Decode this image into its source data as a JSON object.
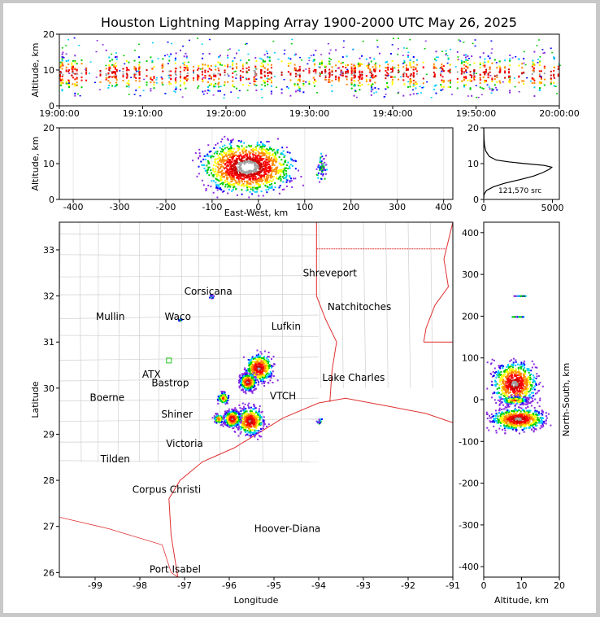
{
  "title": "Houston Lightning Mapping Array 1900-2000 UTC May 26, 2025",
  "chart_data": [
    {
      "id": "altitude-vs-time",
      "type": "heatmap",
      "ylabel": "Altitude, km",
      "xlim": [
        "19:00:00",
        "20:00:00"
      ],
      "ylim": [
        0,
        20
      ],
      "x_ticks": [
        "19:00:00",
        "19:10:00",
        "19:20:00",
        "19:30:00",
        "19:40:00",
        "19:50:00",
        "20:00:00"
      ],
      "y_ticks": [
        0,
        10,
        20
      ],
      "band": {
        "altitude_center_km": 9,
        "altitude_extent_km": [
          2,
          16
        ]
      }
    },
    {
      "id": "altitude-vs-east-west",
      "type": "heatmap",
      "xlabel": "East-West, km",
      "ylabel": "Altitude, km",
      "xlim": [
        -430,
        420
      ],
      "ylim": [
        0,
        20
      ],
      "x_ticks": [
        -400,
        -300,
        -200,
        -100,
        0,
        100,
        200,
        300,
        400
      ],
      "y_ticks": [
        0,
        10,
        20
      ],
      "clusters": [
        {
          "x_km": -25,
          "alt_km": 9,
          "spread_x_km": 55,
          "spread_alt_km": 4,
          "level": "high"
        },
        {
          "x_km": 135,
          "alt_km": 9,
          "spread_x_km": 6,
          "spread_alt_km": 2,
          "level": "low"
        }
      ]
    },
    {
      "id": "altitude-histogram",
      "type": "line",
      "xlim": [
        0,
        5500
      ],
      "ylim": [
        0,
        20
      ],
      "x_ticks": [
        0,
        5000
      ],
      "y_ticks": [
        0,
        10,
        20
      ],
      "annotation": "121,570 src",
      "profile": [
        [
          0,
          0.5
        ],
        [
          30,
          1.5
        ],
        [
          200,
          2.5
        ],
        [
          700,
          3.5
        ],
        [
          1500,
          4.5
        ],
        [
          2600,
          5.5
        ],
        [
          3600,
          6.5
        ],
        [
          4300,
          7.5
        ],
        [
          4800,
          8.5
        ],
        [
          4950,
          9.0
        ],
        [
          4400,
          9.5
        ],
        [
          3000,
          10.0
        ],
        [
          1800,
          10.5
        ],
        [
          900,
          11.0
        ],
        [
          400,
          12.0
        ],
        [
          150,
          13.5
        ],
        [
          60,
          15.0
        ],
        [
          20,
          17.0
        ],
        [
          5,
          19.0
        ],
        [
          0,
          20.0
        ]
      ]
    },
    {
      "id": "plan-view-map",
      "type": "scatter",
      "xlabel": "Longitude",
      "ylabel": "Latitude",
      "xlim": [
        -99.8,
        -91
      ],
      "ylim": [
        25.9,
        33.6
      ],
      "x_ticks": [
        -99,
        -98,
        -97,
        -96,
        -95,
        -94,
        -93,
        -92,
        -91
      ],
      "y_ticks": [
        26,
        27,
        28,
        29,
        30,
        31,
        32,
        33
      ],
      "cities": [
        {
          "name": "Shreveport",
          "lon": -93.75,
          "lat": 32.5
        },
        {
          "name": "Corsicana",
          "lon": -96.47,
          "lat": 32.1
        },
        {
          "name": "Natchitoches",
          "lon": -93.09,
          "lat": 31.76
        },
        {
          "name": "Mullin",
          "lon": -98.66,
          "lat": 31.55,
          "color": "#e58a5a"
        },
        {
          "name": "Waco",
          "lon": -97.15,
          "lat": 31.55
        },
        {
          "name": "Lufkin",
          "lon": -94.73,
          "lat": 31.34
        },
        {
          "name": "ATX",
          "lon": -97.74,
          "lat": 30.3,
          "color": "#f08a40"
        },
        {
          "name": "Bastrop",
          "lon": -97.32,
          "lat": 30.11
        },
        {
          "name": "Lake Charles",
          "lon": -93.22,
          "lat": 30.23
        },
        {
          "name": "Boerne",
          "lon": -98.73,
          "lat": 29.79
        },
        {
          "name": "VTCH",
          "lon": -94.8,
          "lat": 29.83,
          "color": "#e8a000"
        },
        {
          "name": "Shiner",
          "lon": -97.17,
          "lat": 29.43
        },
        {
          "name": "Victoria",
          "lon": -97.0,
          "lat": 28.8
        },
        {
          "name": "Tilden",
          "lon": -98.55,
          "lat": 28.46
        },
        {
          "name": "Corpus Christi",
          "lon": -97.4,
          "lat": 27.8
        },
        {
          "name": "Hoover-Diana",
          "lon": -94.7,
          "lat": 26.95,
          "color": "#1010d0"
        },
        {
          "name": "Port Isabel",
          "lon": -97.21,
          "lat": 26.07
        }
      ],
      "clusters": [
        {
          "lon": -95.35,
          "lat": 30.45,
          "r": 0.3,
          "level": "high"
        },
        {
          "lon": -95.6,
          "lat": 30.15,
          "r": 0.18,
          "level": "high"
        },
        {
          "lon": -95.55,
          "lat": 29.3,
          "r": 0.3,
          "level": "high"
        },
        {
          "lon": -95.95,
          "lat": 29.35,
          "r": 0.18,
          "level": "high"
        },
        {
          "lon": -96.25,
          "lat": 29.35,
          "r": 0.1,
          "level": "mid"
        },
        {
          "lon": -96.15,
          "lat": 29.8,
          "r": 0.12,
          "level": "mid"
        },
        {
          "lon": -94.0,
          "lat": 29.3,
          "r": 0.06,
          "level": "low"
        },
        {
          "lon": -96.4,
          "lat": 32.0,
          "r": 0.05,
          "level": "low"
        },
        {
          "lon": -97.1,
          "lat": 31.5,
          "r": 0.03,
          "level": "low"
        }
      ],
      "site_marker": {
        "lon": -97.35,
        "lat": 30.6,
        "color": "#22c81e"
      }
    },
    {
      "id": "north-south-vs-altitude",
      "type": "heatmap",
      "xlabel": "Altitude, km",
      "ylabel": "North-South, km",
      "xlim": [
        0,
        20
      ],
      "ylim": [
        -425,
        425
      ],
      "x_ticks": [
        0,
        10,
        20
      ],
      "y_ticks": [
        -400,
        -300,
        -200,
        -100,
        0,
        100,
        200,
        300,
        400
      ],
      "clusters": [
        {
          "alt_km": 8,
          "ns_km": 40,
          "spread_alt_km": 5,
          "spread_ns_km": 45,
          "level": "high"
        },
        {
          "alt_km": 9,
          "ns_km": -45,
          "spread_alt_km": 6,
          "spread_ns_km": 22,
          "level": "high"
        },
        {
          "alt_km": 8,
          "ns_km": 0,
          "spread_alt_km": 4,
          "spread_ns_km": 10,
          "level": "mid"
        }
      ]
    }
  ]
}
